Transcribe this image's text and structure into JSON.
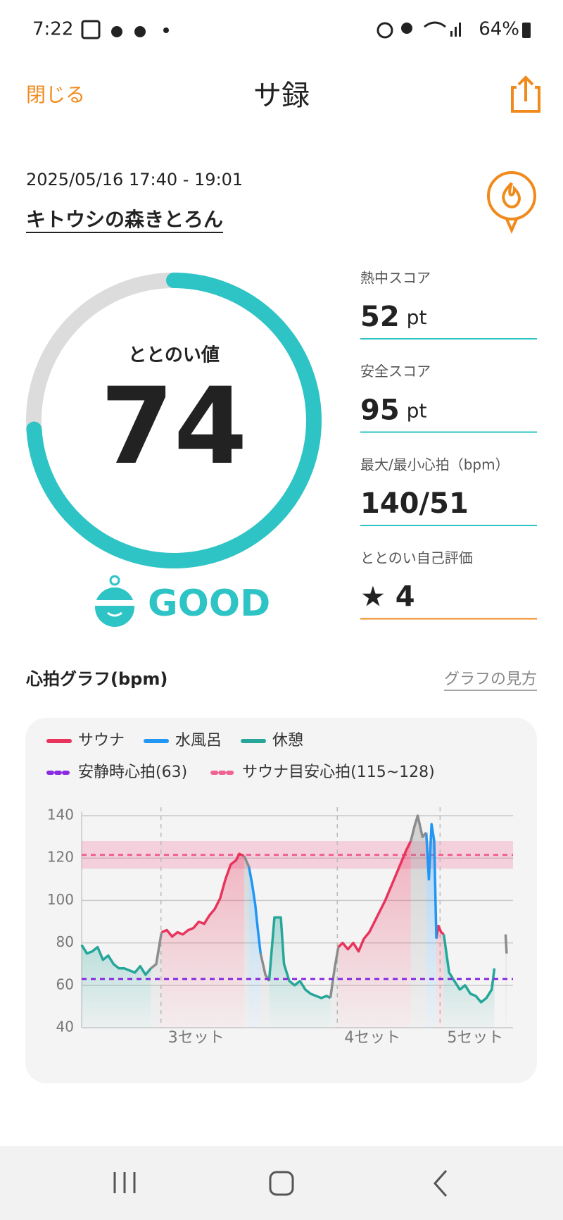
{
  "status_bar": {
    "time": "7:22",
    "battery": "64%"
  },
  "header": {
    "close": "閉じる",
    "title": "サ録"
  },
  "session": {
    "datetime": "2025/05/16 17:40 - 19:01",
    "facility": "キトウシの森きとろん"
  },
  "totonoi": {
    "label": "ととのい値",
    "value": 74,
    "range": [
      0,
      100
    ],
    "rating": "GOOD"
  },
  "stats": [
    {
      "label": "熱中スコア",
      "value": 52,
      "unit": "pt"
    },
    {
      "label": "安全スコア",
      "value": 95,
      "unit": "pt"
    },
    {
      "label": "最大/最小心拍（bpm）",
      "value": "140/51"
    },
    {
      "label": "ととのい自己評価",
      "value": "★ 4"
    }
  ],
  "graph_help": "グラフの見方",
  "chart_data": {
    "type": "line",
    "title": "心拍グラフ(bpm)",
    "xlim": [
      0,
      81
    ],
    "xticks": [
      {
        "value": 14.9,
        "label": "3セット"
      },
      {
        "value": 48,
        "label": "4セット"
      },
      {
        "value": 67.3,
        "label": "5セット"
      }
    ],
    "ylim": [
      40,
      140
    ],
    "yticks": [
      40,
      60,
      80,
      100,
      120,
      140
    ],
    "grid": true,
    "series": [
      {
        "name": "サウナ",
        "color": "#e8345c",
        "x": [
          15,
          16,
          17,
          18,
          19,
          20,
          21,
          22,
          23,
          24,
          25,
          26,
          27,
          28,
          29,
          29.6,
          30.5,
          null,
          48.2,
          49,
          50,
          51,
          52,
          53,
          54,
          55,
          56,
          57,
          58,
          59,
          60,
          61,
          61.8,
          null,
          66.6,
          67,
          67.5,
          68
        ],
        "values": [
          85,
          86,
          83,
          85,
          84,
          86,
          87,
          90,
          89,
          93,
          96,
          101,
          110,
          117,
          119,
          122,
          121,
          null,
          78,
          80,
          77,
          80,
          76,
          82,
          85,
          90,
          95,
          100,
          106,
          112,
          118,
          124,
          128,
          null,
          82,
          88,
          85,
          84
        ]
      },
      {
        "name": "水風呂",
        "color": "#2196f3",
        "x": [
          31.4,
          32,
          32.6,
          33.1,
          33.6,
          null,
          64.7,
          65.2,
          65.7,
          66.2,
          66.6
        ],
        "values": [
          116,
          108,
          98,
          86,
          75,
          null,
          132,
          110,
          136,
          128,
          82
        ]
      },
      {
        "name": "休憩",
        "color": "#26a69a",
        "x": [
          0,
          1,
          2,
          3,
          4,
          5,
          6,
          7,
          8,
          9,
          10,
          11,
          12,
          13,
          null,
          35.2,
          36.2,
          37.4,
          38,
          39,
          40,
          41,
          42,
          43,
          44,
          45,
          46,
          46.7,
          null,
          68,
          69,
          70,
          71,
          72,
          73,
          74,
          75,
          76,
          77,
          77.5
        ],
        "values": [
          79,
          75,
          76,
          78,
          72,
          74,
          70,
          68,
          68,
          67,
          66,
          69,
          65,
          68,
          null,
          62,
          92,
          92,
          70,
          62,
          60,
          62,
          58,
          56,
          55,
          54,
          55,
          54,
          null,
          84,
          66,
          62,
          58,
          60,
          56,
          55,
          52,
          54,
          58,
          68
        ]
      },
      {
        "color": "#8c8c8c",
        "x": [
          13,
          14,
          15,
          null,
          30.5,
          31.4,
          null,
          33.6,
          34.5,
          35.2,
          null,
          46.7,
          47.5,
          48.2,
          null,
          61.8,
          62.5,
          63.1,
          64,
          64.7,
          null,
          79.6,
          79.8
        ],
        "values": [
          68,
          70,
          85,
          null,
          121,
          116,
          null,
          75,
          65,
          62,
          null,
          54,
          68,
          78,
          null,
          128,
          135,
          140,
          130,
          132,
          null,
          84,
          75
        ]
      }
    ],
    "reference_lines": [
      {
        "name": "安静時心拍(63)",
        "color": "#8a2be2",
        "value": 63
      }
    ],
    "reference_bands": [
      {
        "name": "サウナ目安心拍(115~128)",
        "color": "#f06292",
        "range": [
          115,
          128
        ]
      }
    ]
  }
}
